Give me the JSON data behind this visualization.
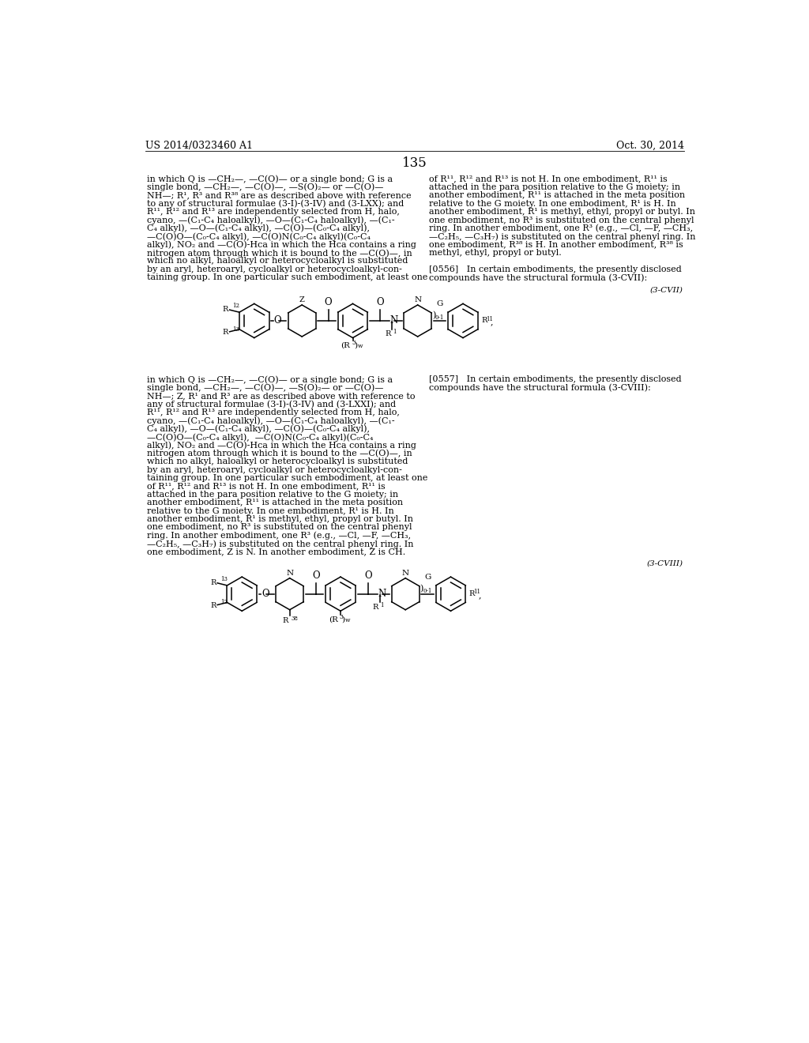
{
  "background_color": "#ffffff",
  "header_left": "US 2014/0323460 A1",
  "header_right": "Oct. 30, 2014",
  "page_number": "135",
  "left_col1": [
    "in which Q is —CH₂—, —C(O)— or a single bond; G is a",
    "single bond, —CH₂—, —C(O)—, —S(O)₂— or —C(O)—",
    "NH—; R¹, R³ and R³⁸ are as described above with reference",
    "to any of structural formulae (3-I)-(3-IV) and (3-LXX); and",
    "R¹¹, R¹² and R¹³ are independently selected from H, halo,",
    "cyano, —(C₁-C₄ haloalkyl), —O—(C₁-C₄ haloalkyl), —(C₁-",
    "C₄ alkyl), —O—(C₁-C₄ alkyl), —C(O)—(C₀-C₄ alkyl),",
    "—C(O)O—(C₀-C₄ alkyl), —C(O)N(C₀-C₄ alkyl)(C₀-C₄",
    "alkyl), NO₂ and —C(O)-Hca in which the Hca contains a ring",
    "nitrogen atom through which it is bound to the —C(O)—, in",
    "which no alkyl, haloalkyl or heterocycloalkyl is substituted",
    "by an aryl, heteroaryl, cycloalkyl or heterocycloalkyl-con-",
    "taining group. In one particular such embodiment, at least one"
  ],
  "right_col1": [
    "of R¹¹, R¹² and R¹³ is not H. In one embodiment, R¹¹ is",
    "attached in the para position relative to the G moiety; in",
    "another embodiment, R¹¹ is attached in the meta position",
    "relative to the G moiety. In one embodiment, R¹ is H. In",
    "another embodiment, R¹ is methyl, ethyl, propyl or butyl. In",
    "one embodiment, no R³ is substituted on the central phenyl",
    "ring. In another embodiment, one R³ (e.g., —Cl, —F, —CH₃,",
    "—C₂H₅, —C₃H₇) is substituted on the central phenyl ring. In",
    "one embodiment, R³⁸ is H. In another embodiment, R³⁸ is",
    "methyl, ethyl, propyl or butyl.",
    "",
    "[0556]   In certain embodiments, the presently disclosed",
    "compounds have the structural formula (3-CVII):"
  ],
  "formula_label_1": "(3-CVII)",
  "left_col2": [
    "in which Q is —CH₂—, —C(O)— or a single bond; G is a",
    "single bond, —CH₂—, —C(O)—, —S(O)₂— or —C(O)—",
    "NH—; Z, R¹ and R³ are as described above with reference to",
    "any of structural formulae (3-I)-(3-IV) and (3-LXXI); and",
    "R¹¹, R¹² and R¹³ are independently selected from H, halo,",
    "cyano, —(C₁-C₄ haloalkyl), —O—(C₁-C₄ haloalkyl), —(C₁-",
    "C₄ alkyl), —O—(C₁-C₄ alkyl), —C(O)—(C₀-C₄ alkyl),",
    "—C(O)O—(C₀-C₄ alkyl),  —C(O)N(C₀-C₄ alkyl)(C₀-C₄",
    "alkyl), NO₂ and —C(O)-Hca in which the Hca contains a ring",
    "nitrogen atom through which it is bound to the —C(O)—, in",
    "which no alkyl, haloalkyl or heterocycloalkyl is substituted",
    "by an aryl, heteroaryl, cycloalkyl or heterocycloalkyl-con-",
    "taining group. In one particular such embodiment, at least one",
    "of R¹¹, R¹² and R¹³ is not H. In one embodiment, R¹¹ is",
    "attached in the para position relative to the G moiety; in",
    "another embodiment, R¹¹ is attached in the meta position",
    "relative to the G moiety. In one embodiment, R¹ is H. In",
    "another embodiment, R¹ is methyl, ethyl, propyl or butyl. In",
    "one embodiment, no R³ is substituted on the central phenyl",
    "ring. In another embodiment, one R³ (e.g., —Cl, —F, —CH₃,",
    "—C₂H₅, —C₃H₇) is substituted on the central phenyl ring. In",
    "one embodiment, Z is N. In another embodiment, Z is CH."
  ],
  "right_col2": [
    "[0557]   In certain embodiments, the presently disclosed",
    "compounds have the structural formula (3-CVIII):"
  ],
  "formula_label_2": "(3-CVIII)"
}
